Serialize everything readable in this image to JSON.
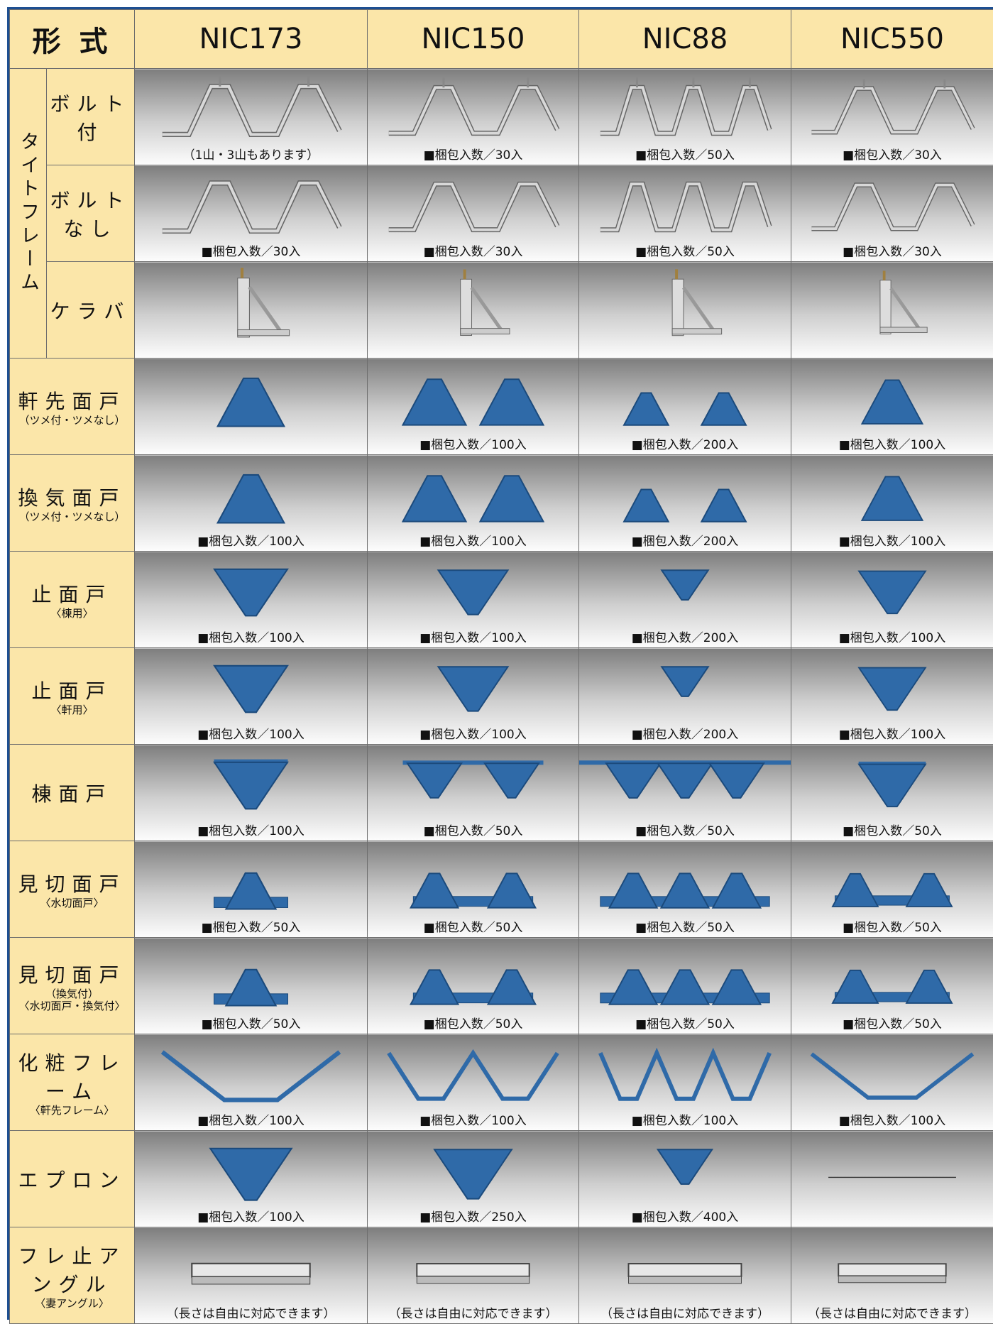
{
  "header": {
    "title": "形式",
    "columns": [
      "NIC173",
      "NIC150",
      "NIC88",
      "NIC550"
    ]
  },
  "table": {
    "group": "タイトフレーム",
    "rows": [
      {
        "label": "ボルト付",
        "captions": [
          "（1山・3山もあります）",
          "■梱包入数／30入",
          "■梱包入数／50入",
          "■梱包入数／30入"
        ]
      },
      {
        "label": "ボルトなし",
        "captions": [
          "■梱包入数／30入",
          "■梱包入数／30入",
          "■梱包入数／50入",
          "■梱包入数／30入"
        ]
      },
      {
        "label": "ケラバ"
      },
      {
        "label": "軒先面戸",
        "sub": [
          "（ツメ付・ツメなし）"
        ],
        "captions": [
          null,
          "■梱包入数／100入",
          "■梱包入数／200入",
          "■梱包入数／100入"
        ]
      },
      {
        "label": "換気面戸",
        "sub": [
          "（ツメ付・ツメなし）"
        ],
        "captions": [
          "■梱包入数／100入",
          "■梱包入数／100入",
          "■梱包入数／200入",
          "■梱包入数／100入"
        ]
      },
      {
        "label": "止面戸",
        "sub": [
          "〈棟用〉"
        ],
        "captions": [
          "■梱包入数／100入",
          "■梱包入数／100入",
          "■梱包入数／200入",
          "■梱包入数／100入"
        ]
      },
      {
        "label": "止面戸",
        "sub": [
          "〈軒用〉"
        ],
        "captions": [
          "■梱包入数／100入",
          "■梱包入数／100入",
          "■梱包入数／200入",
          "■梱包入数／100入"
        ]
      },
      {
        "label": "棟面戸",
        "captions": [
          "■梱包入数／100入",
          "■梱包入数／50入",
          "■梱包入数／50入",
          "■梱包入数／50入"
        ]
      },
      {
        "label": "見切面戸",
        "sub": [
          "〈水切面戸〉"
        ],
        "captions": [
          "■梱包入数／50入",
          "■梱包入数／50入",
          "■梱包入数／50入",
          "■梱包入数／50入"
        ]
      },
      {
        "label": "見切面戸",
        "sub": [
          "（換気付）",
          "〈水切面戸・換気付〉"
        ],
        "captions": [
          "■梱包入数／50入",
          "■梱包入数／50入",
          "■梱包入数／50入",
          "■梱包入数／50入"
        ]
      },
      {
        "label": "化粧フレーム",
        "sub": [
          "〈軒先フレーム〉"
        ],
        "captions": [
          "■梱包入数／100入",
          "■梱包入数／100入",
          "■梱包入数／100入",
          "■梱包入数／100入"
        ]
      },
      {
        "label": "エプロン",
        "captions": [
          "■梱包入数／100入",
          "■梱包入数／250入",
          "■梱包入数／400入",
          null
        ]
      },
      {
        "label": "フレ止アングル",
        "sub": [
          "〈妻アングル〉"
        ],
        "captions": [
          "（長さは自由に対応できます）",
          "（長さは自由に対応できます）",
          "（長さは自由に対応できます）",
          "（長さは自由に対応できます）"
        ]
      }
    ]
  }
}
